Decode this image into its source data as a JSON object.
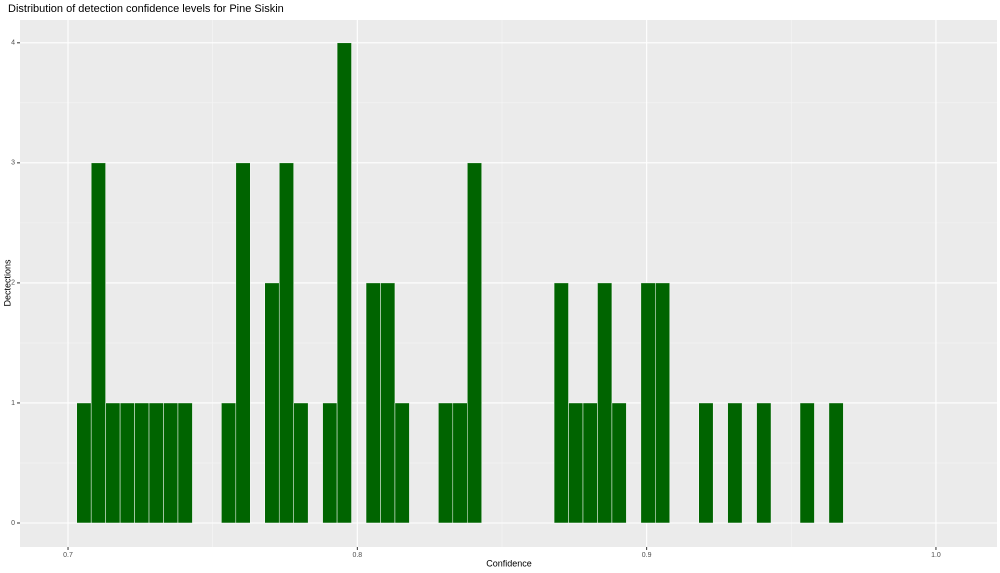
{
  "chart_data": {
    "type": "histogram",
    "title": "Distribution of detection confidence levels for Pine Siskin",
    "x_label": "Confidence",
    "y_label": "Dectections",
    "bins": [
      0.703,
      0.708,
      0.713,
      0.718,
      0.723,
      0.728,
      0.733,
      0.738,
      0.743,
      0.748,
      0.753,
      0.758,
      0.763,
      0.768,
      0.773,
      0.778,
      0.783,
      0.788,
      0.793,
      0.798,
      0.803,
      0.808,
      0.813,
      0.818,
      0.823,
      0.828,
      0.833,
      0.838,
      0.843,
      0.848,
      0.853,
      0.858,
      0.863,
      0.868,
      0.873,
      0.878,
      0.883,
      0.888,
      0.893,
      0.898,
      0.903,
      0.908,
      0.913,
      0.918,
      0.923,
      0.928,
      0.933,
      0.938,
      0.943,
      0.948,
      0.953,
      0.958,
      0.963,
      0.968
    ],
    "values": [
      1,
      3,
      1,
      1,
      1,
      1,
      1,
      1,
      0,
      0,
      1,
      3,
      0,
      2,
      3,
      1,
      0,
      1,
      4,
      0,
      2,
      2,
      1,
      0,
      0,
      1,
      1,
      3,
      0,
      0,
      0,
      0,
      0,
      2,
      1,
      1,
      2,
      1,
      0,
      2,
      2,
      0,
      0,
      1,
      0,
      1,
      0,
      1,
      0,
      0,
      1,
      0,
      1
    ],
    "color": "#006400",
    "xlim": [
      0.6834,
      1.0211
    ],
    "xticks": [
      0.7,
      0.8,
      0.9,
      {
        "value": 1,
        "label": "1.0"
      }
    ],
    "ylim": [
      -0.2,
      4.19
    ],
    "yticks": [
      0,
      1,
      2,
      3,
      4
    ],
    "grid": true
  }
}
